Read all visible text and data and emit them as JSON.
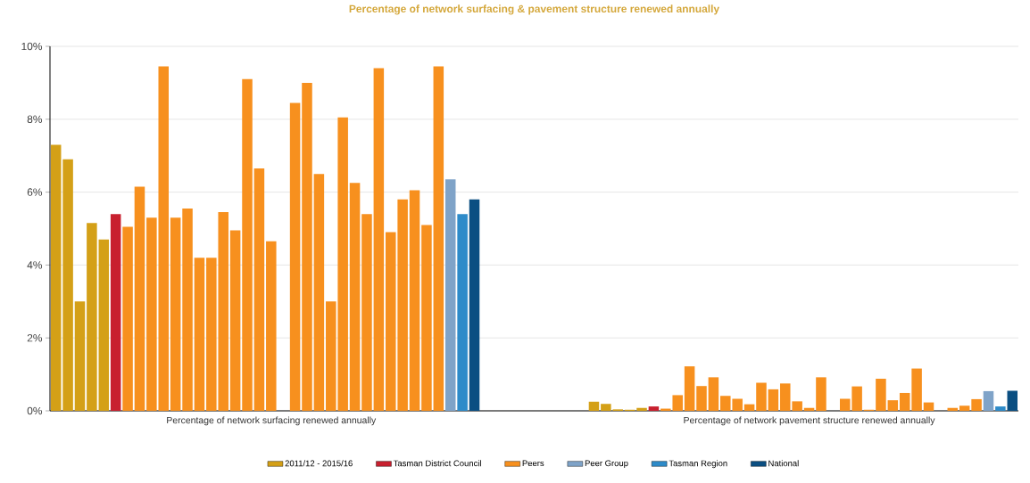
{
  "chart_data": {
    "type": "bar",
    "title": "Percentage of network surfacing & pavement structure renewed annually",
    "categories": [
      null,
      null,
      null,
      null,
      null,
      null,
      null,
      null,
      null,
      null,
      null,
      null,
      null,
      null,
      null,
      null,
      null,
      null,
      "Percentage of network surfacing renewed annually",
      null,
      null,
      null,
      null,
      null,
      null,
      null,
      null,
      null,
      null,
      null,
      null,
      null,
      null,
      null,
      null,
      null,
      null,
      null,
      null,
      null,
      null,
      null,
      null,
      null,
      null,
      null,
      null,
      null,
      null,
      null,
      null,
      null,
      null,
      null,
      null,
      null,
      null,
      null,
      null,
      null,
      null,
      null,
      null,
      "Percentage of network pavement structure renewed annually",
      null,
      null,
      null,
      null,
      null,
      null,
      null,
      null,
      null,
      null,
      null,
      null,
      null,
      null,
      null,
      null,
      null
    ],
    "series": [
      {
        "name": "2011/12 - 2015/16",
        "color": "#d4a017",
        "values": [
          7.3,
          6.9,
          3.0,
          5.15,
          4.7,
          null,
          null,
          null,
          null,
          null,
          null,
          null,
          null,
          null,
          null,
          null,
          null,
          null,
          null,
          null,
          null,
          null,
          null,
          null,
          null,
          null,
          null,
          null,
          null,
          null,
          null,
          null,
          null,
          null,
          null,
          null,
          null,
          null,
          null,
          null,
          null,
          null,
          null,
          null,
          null,
          0.25,
          0.19,
          0.04,
          0.03,
          0.08,
          null,
          null,
          null,
          null,
          null,
          null,
          null,
          null,
          null,
          null,
          null,
          null,
          null,
          null,
          null,
          null,
          null,
          null,
          null,
          null,
          null,
          null,
          null,
          null,
          null,
          null,
          null,
          null,
          null,
          null,
          null
        ]
      },
      {
        "name": "Tasman District Council",
        "color": "#c8202f",
        "values": [
          null,
          null,
          null,
          null,
          null,
          5.4,
          null,
          null,
          null,
          null,
          null,
          null,
          null,
          null,
          null,
          null,
          null,
          null,
          null,
          null,
          null,
          null,
          null,
          null,
          null,
          null,
          null,
          null,
          null,
          null,
          null,
          null,
          null,
          null,
          null,
          null,
          null,
          null,
          null,
          null,
          null,
          null,
          null,
          null,
          null,
          null,
          null,
          null,
          null,
          null,
          0.12,
          null,
          null,
          null,
          null,
          null,
          null,
          null,
          null,
          null,
          null,
          null,
          null,
          null,
          null,
          null,
          null,
          null,
          null,
          null,
          null,
          null,
          null,
          null,
          null,
          null,
          null,
          null,
          null,
          null,
          null
        ]
      },
      {
        "name": "Peers",
        "color": "#f7901e",
        "values": [
          null,
          null,
          null,
          null,
          null,
          null,
          5.05,
          6.15,
          5.3,
          9.45,
          5.3,
          5.55,
          4.2,
          4.2,
          5.45,
          4.95,
          9.1,
          6.65,
          4.65,
          null,
          8.45,
          9.0,
          6.5,
          3.0,
          8.05,
          6.25,
          5.4,
          9.4,
          4.9,
          5.8,
          6.05,
          5.1,
          9.45,
          null,
          null,
          null,
          null,
          null,
          null,
          null,
          null,
          null,
          null,
          null,
          null,
          null,
          null,
          null,
          null,
          null,
          null,
          0.06,
          0.43,
          1.22,
          0.68,
          0.92,
          0.41,
          0.33,
          0.18,
          0.77,
          0.59,
          0.75,
          0.26,
          0.08,
          0.92,
          null,
          0.33,
          0.67,
          0.03,
          0.88,
          0.29,
          0.49,
          1.16,
          0.23,
          null,
          0.08,
          0.14,
          0.32,
          null,
          null,
          null
        ]
      },
      {
        "name": "Peer Group",
        "color": "#7fa3c8",
        "values": [
          null,
          null,
          null,
          null,
          null,
          null,
          null,
          null,
          null,
          null,
          null,
          null,
          null,
          null,
          null,
          null,
          null,
          null,
          null,
          null,
          null,
          null,
          null,
          null,
          null,
          null,
          null,
          null,
          null,
          null,
          null,
          null,
          null,
          6.35,
          null,
          null,
          null,
          null,
          null,
          null,
          null,
          null,
          null,
          null,
          null,
          null,
          null,
          null,
          null,
          null,
          null,
          null,
          null,
          null,
          null,
          null,
          null,
          null,
          null,
          null,
          null,
          null,
          null,
          null,
          null,
          null,
          null,
          null,
          null,
          null,
          null,
          null,
          null,
          null,
          null,
          null,
          null,
          null,
          0.54,
          null,
          null
        ]
      },
      {
        "name": "Tasman Region",
        "color": "#2e8bc9",
        "values": [
          null,
          null,
          null,
          null,
          null,
          null,
          null,
          null,
          null,
          null,
          null,
          null,
          null,
          null,
          null,
          null,
          null,
          null,
          null,
          null,
          null,
          null,
          null,
          null,
          null,
          null,
          null,
          null,
          null,
          null,
          null,
          null,
          null,
          null,
          5.4,
          null,
          null,
          null,
          null,
          null,
          null,
          null,
          null,
          null,
          null,
          null,
          null,
          null,
          null,
          null,
          null,
          null,
          null,
          null,
          null,
          null,
          null,
          null,
          null,
          null,
          null,
          null,
          null,
          null,
          null,
          null,
          null,
          null,
          null,
          null,
          null,
          null,
          null,
          null,
          null,
          null,
          null,
          null,
          null,
          0.12,
          null
        ]
      },
      {
        "name": "National",
        "color": "#0b4f82",
        "values": [
          null,
          null,
          null,
          null,
          null,
          null,
          null,
          null,
          null,
          null,
          null,
          null,
          null,
          null,
          null,
          null,
          null,
          null,
          null,
          null,
          null,
          null,
          null,
          null,
          null,
          null,
          null,
          null,
          null,
          null,
          null,
          null,
          null,
          null,
          null,
          5.8,
          null,
          null,
          null,
          null,
          null,
          null,
          null,
          null,
          null,
          null,
          null,
          null,
          null,
          null,
          null,
          null,
          null,
          null,
          null,
          null,
          null,
          null,
          null,
          null,
          null,
          null,
          null,
          null,
          null,
          null,
          null,
          null,
          null,
          null,
          null,
          null,
          null,
          null,
          null,
          null,
          null,
          null,
          null,
          null,
          0.55
        ]
      }
    ],
    "ylim": [
      0,
      10
    ],
    "yticks": [
      {
        "value": 0,
        "label": "0%"
      },
      {
        "value": 2,
        "label": "2%"
      },
      {
        "value": 4,
        "label": "4%"
      },
      {
        "value": 6,
        "label": "6%"
      },
      {
        "value": 8,
        "label": "8%"
      },
      {
        "value": 10,
        "label": "10%"
      }
    ],
    "grid": "y",
    "legend": "bottom"
  }
}
